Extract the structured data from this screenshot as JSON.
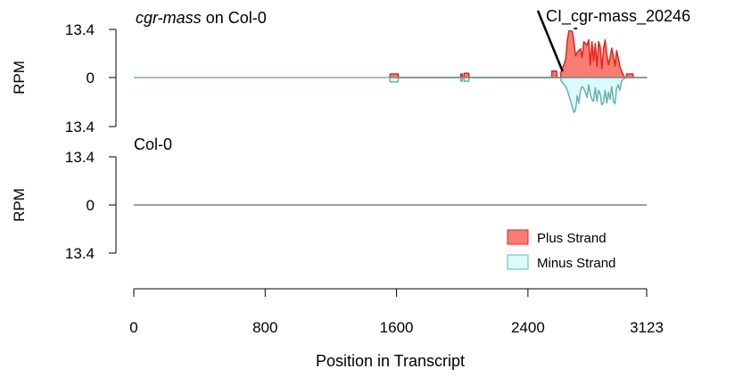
{
  "chart_data": {
    "type": "area",
    "xlabel": "Position in Transcript",
    "xlim": [
      0,
      3123
    ],
    "x_ticks": [
      "0",
      "800",
      "1600",
      "2400",
      "3123"
    ],
    "x_tick_values": [
      0,
      800,
      1600,
      2400,
      3123
    ],
    "legend": {
      "position": "bottom-right",
      "entries": [
        {
          "label": "Plus Strand",
          "color": "#f87d73",
          "border": "#e8221b"
        },
        {
          "label": "Minus Strand",
          "color": "#d9fbfb",
          "border": "#6bb0ae"
        }
      ]
    },
    "annotation": {
      "label": "CI_cgr-mass_20246",
      "x_start": 2600,
      "x_end": 2640
    },
    "panels": [
      {
        "title_italic": "cgr-mass",
        "title_rest": " on Col-0",
        "ylabel": "RPM",
        "ymax": 13.4,
        "y_ticks": [
          "13.4",
          "0",
          "13.4"
        ],
        "grid": false,
        "series": [
          {
            "name": "Plus Strand",
            "color": "#f87d73",
            "border": "#e8221b",
            "x": [
              1560,
              1561,
              1610,
              1611,
              1990,
              1991,
              2000,
              2001,
              2010,
              2011,
              2040,
              2041,
              2545,
              2546,
              2575,
              2576,
              2600,
              2601,
              2630,
              2640,
              2650,
              2660,
              2670,
              2680,
              2690,
              2700,
              2720,
              2730,
              2740,
              2750,
              2760,
              2770,
              2780,
              2790,
              2800,
              2810,
              2820,
              2830,
              2840,
              2850,
              2860,
              2870,
              2880,
              2890,
              2900,
              2910,
              2920,
              2930,
              2940,
              2950,
              2960,
              2970,
              2980,
              2990,
              3000,
              3001,
              3040,
              3041,
              3123
            ],
            "y": [
              0,
              1.0,
              1.0,
              0,
              0,
              1.0,
              1.0,
              0,
              0,
              1.2,
              1.2,
              0,
              0,
              1.8,
              1.8,
              0,
              0,
              1.4,
              5.0,
              10.5,
              13.0,
              13.0,
              12.8,
              10.0,
              6.0,
              7.0,
              8.0,
              5.5,
              10.0,
              9.5,
              9.0,
              10.5,
              3.5,
              10.0,
              4.5,
              9.5,
              3.0,
              10.0,
              8.5,
              2.5,
              8.0,
              10.5,
              6.5,
              3.5,
              5.5,
              8.2,
              6.0,
              3.2,
              7.5,
              5.5,
              3.0,
              1.8,
              0.8,
              0,
              0,
              1.0,
              1.0,
              0,
              0
            ]
          },
          {
            "name": "Minus Strand",
            "color": "#d9fbfb",
            "border": "#6bb0ae",
            "x": [
              1560,
              1561,
              1610,
              1611,
              1990,
              1991,
              2000,
              2001,
              2010,
              2011,
              2040,
              2041,
              2600,
              2601,
              2630,
              2640,
              2650,
              2660,
              2670,
              2680,
              2690,
              2700,
              2710,
              2720,
              2730,
              2740,
              2750,
              2760,
              2770,
              2780,
              2790,
              2800,
              2810,
              2820,
              2830,
              2840,
              2850,
              2860,
              2870,
              2880,
              2890,
              2900,
              2910,
              2920,
              2930,
              2940,
              2950,
              2960,
              2970,
              2980,
              2990,
              3000
            ],
            "y": [
              0,
              -1.2,
              -1.2,
              0,
              0,
              -1.0,
              -1.0,
              0,
              0,
              -1.0,
              -1.0,
              0,
              0,
              -0.8,
              -2.5,
              -3.5,
              -5.0,
              -6.5,
              -8.0,
              -9.5,
              -9.0,
              -5.0,
              -7.0,
              -3.5,
              -2.5,
              -3.0,
              -4.0,
              -5.5,
              -2.0,
              -4.5,
              -6.0,
              -6.5,
              -2.8,
              -6.5,
              -3.5,
              -4.5,
              -7.5,
              -6.8,
              -3.5,
              -7.0,
              -4.0,
              -6.0,
              -2.5,
              -6.5,
              -7.2,
              -3.0,
              -2.0,
              -3.5,
              -1.0,
              -0.5,
              -0.2,
              0
            ]
          }
        ]
      },
      {
        "title_italic": "",
        "title_rest": "Col-0",
        "ylabel": "RPM",
        "ymax": 13.4,
        "y_ticks": [
          "13.4",
          "0",
          "13.4"
        ],
        "grid": false,
        "series": []
      }
    ]
  }
}
